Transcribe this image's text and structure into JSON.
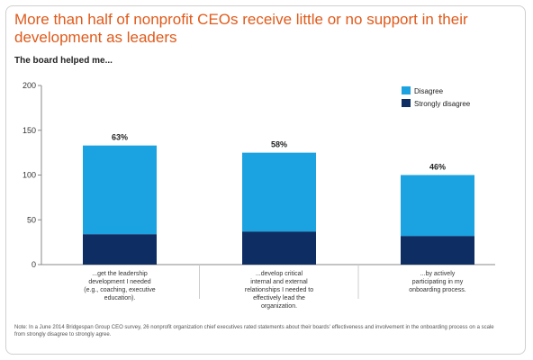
{
  "chart_data": {
    "type": "bar",
    "title": "More than half of nonprofit CEOs receive little or no support in their development as leaders",
    "subtitle": "The board helped me...",
    "yticks": [
      0,
      50,
      100,
      150,
      200
    ],
    "ylim": [
      0,
      200
    ],
    "categories": [
      "...get the leadership development I needed (e.g., coaching, executive education).",
      "...develop critical internal and external relationships I needed to effectively lead the organization.",
      "...by actively participating in my onboarding process."
    ],
    "series": [
      {
        "name": "Strongly disagree",
        "color": "#0d2d63",
        "values": [
          34,
          37,
          32
        ]
      },
      {
        "name": "Disagree",
        "color": "#1aa3e0",
        "values": [
          99,
          88,
          68
        ]
      }
    ],
    "bar_labels": [
      "63%",
      "58%",
      "46%"
    ],
    "legend_position": "top-right",
    "grid": false
  },
  "footnote": "Note: In a June 2014 Bridgespan Group CEO survey, 26 nonprofit organization chief executives rated statements about their boards' effectiveness and involvement in the onboarding process on a scale from strongly disagree to strongly agree."
}
